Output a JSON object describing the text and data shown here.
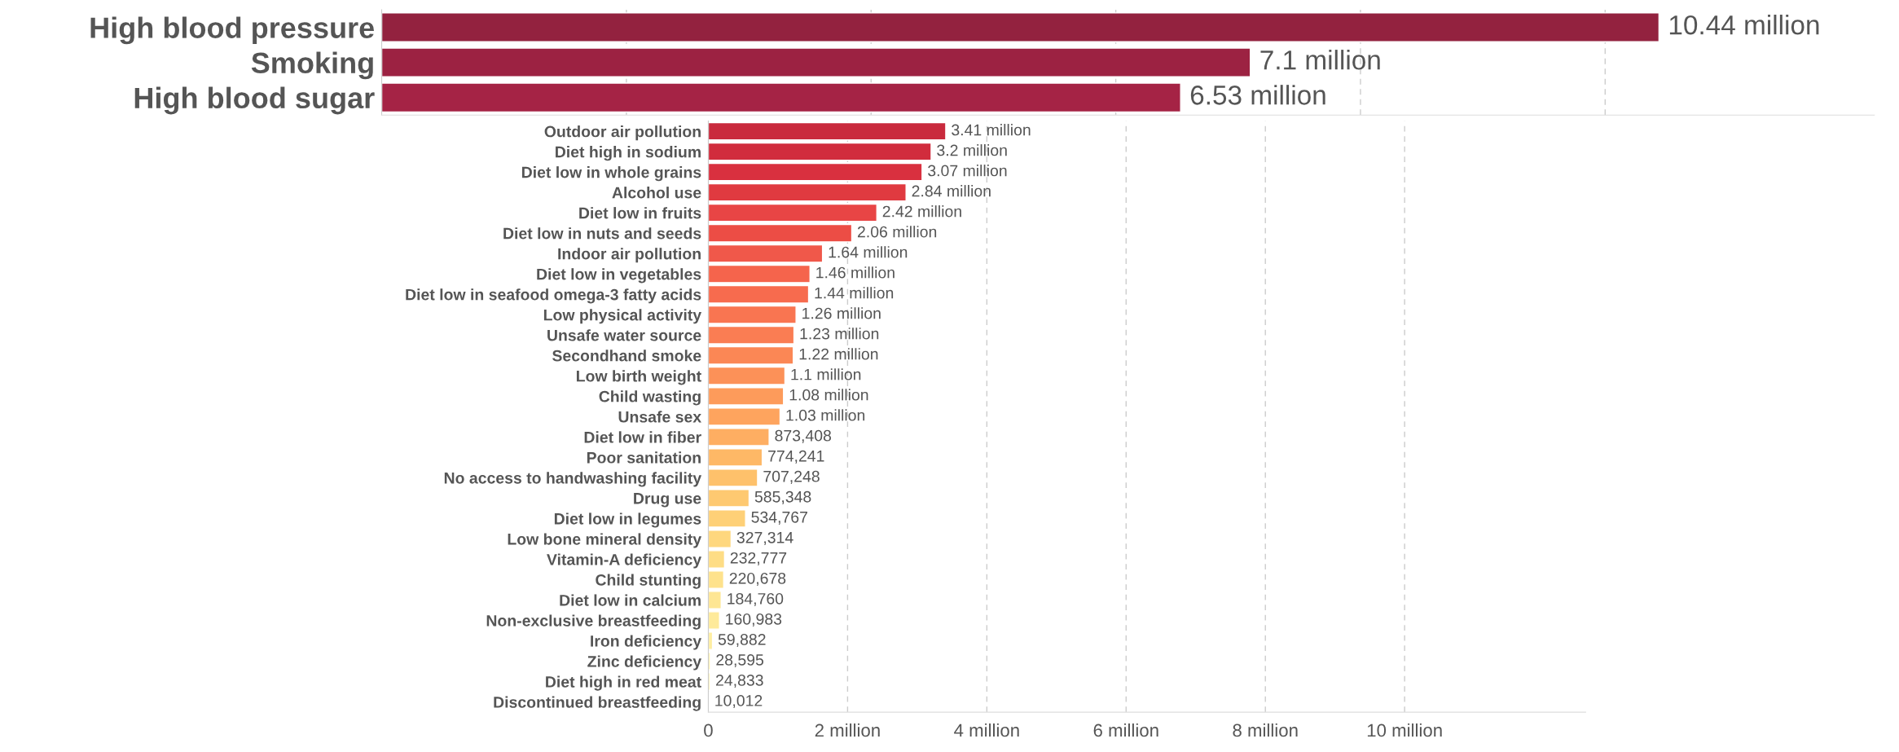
{
  "chart_data": [
    {
      "type": "bar",
      "orientation": "horizontal",
      "categories": [
        "High blood pressure",
        "Smoking",
        "High blood sugar"
      ],
      "values": [
        10440000,
        7100000,
        6530000
      ],
      "colors": [
        "#93223f",
        "#9c2242",
        "#a52345"
      ],
      "value_labels": [
        "10.44 million",
        "7.1 million",
        "6.53 million"
      ],
      "xlim": [
        0,
        12200000
      ],
      "xticks": [
        {
          "value": 2000000,
          "label": null
        },
        {
          "value": 4000000,
          "label": null
        },
        {
          "value": 6000000,
          "label": null
        },
        {
          "value": 8000000,
          "label": null
        },
        {
          "value": 10000000,
          "label": null
        }
      ],
      "grid": "x",
      "tick_labels": "y"
    },
    {
      "type": "bar",
      "orientation": "horizontal",
      "categories": [
        "Outdoor air pollution",
        "Diet high in sodium",
        "Diet low in whole grains",
        "Alcohol use",
        "Diet low in fruits",
        "Diet low in nuts and seeds",
        "Indoor air pollution",
        "Diet low in vegetables",
        "Diet low in seafood omega-3 fatty acids",
        "Low physical activity",
        "Unsafe water source",
        "Secondhand smoke",
        "Low birth weight",
        "Child wasting",
        "Unsafe sex",
        "Diet low in fiber",
        "Poor sanitation",
        "No access to handwashing facility",
        "Drug use",
        "Diet low in legumes",
        "Low bone mineral density",
        "Vitamin-A deficiency",
        "Child stunting",
        "Diet low in calcium",
        "Non-exclusive breastfeeding",
        "Iron deficiency",
        "Zinc deficiency",
        "Diet high in red meat",
        "Discontinued breastfeeding"
      ],
      "values": [
        3410000,
        3200000,
        3070000,
        2840000,
        2420000,
        2060000,
        1640000,
        1460000,
        1440000,
        1260000,
        1230000,
        1220000,
        1100000,
        1080000,
        1030000,
        873408,
        774241,
        707248,
        585348,
        534767,
        327314,
        232777,
        220678,
        184760,
        160983,
        59882,
        28595,
        24833,
        10012
      ],
      "colors": [
        "#c92a3d",
        "#d12c3d",
        "#d9303f",
        "#e03a40",
        "#e84545",
        "#ec4d45",
        "#f0584a",
        "#f5644c",
        "#f76b4e",
        "#f97551",
        "#fa7d53",
        "#fb8755",
        "#fc9158",
        "#fd9b5b",
        "#fea45e",
        "#feae62",
        "#feb866",
        "#fec16b",
        "#fec971",
        "#fed077",
        "#fed77e",
        "#fedd85",
        "#fee28c",
        "#fee693",
        "#feea9a",
        "#feeea1",
        "#fef1a8",
        "#fef3ae",
        "#fef5b4"
      ],
      "value_labels": [
        "3.41 million",
        "3.2 million",
        "3.07 million",
        "2.84 million",
        "2.42 million",
        "2.06 million",
        "1.64 million",
        "1.46 million",
        "1.44 million",
        "1.26 million",
        "1.23 million",
        "1.22 million",
        "1.1 million",
        "1.08 million",
        "1.03 million",
        "873,408",
        "774,241",
        "707,248",
        "585,348",
        "534,767",
        "327,314",
        "232,777",
        "220,678",
        "184,760",
        "160,983",
        "59,882",
        "28,595",
        "24,833",
        "10,012"
      ],
      "xlim": [
        0,
        12600000
      ],
      "xticks": [
        0,
        {
          "value": 2000000,
          "label": "2 million"
        },
        {
          "value": 4000000,
          "label": "4 million"
        },
        {
          "value": 6000000,
          "label": "6 million"
        },
        {
          "value": 8000000,
          "label": "8 million"
        },
        {
          "value": 10000000,
          "label": "10 million"
        }
      ],
      "grid": "x"
    }
  ]
}
